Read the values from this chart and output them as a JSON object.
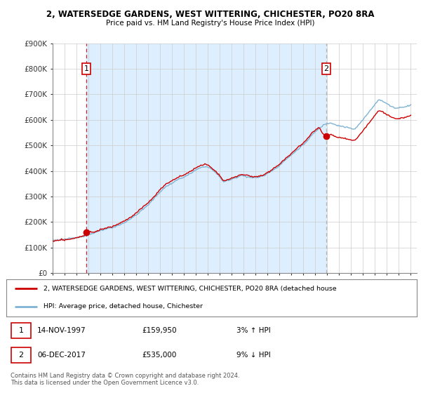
{
  "title_line1": "2, WATERSEDGE GARDENS, WEST WITTERING, CHICHESTER, PO20 8RA",
  "title_line2": "Price paid vs. HM Land Registry's House Price Index (HPI)",
  "sale1_price": 159950,
  "sale1_date_str": "14-NOV-1997",
  "sale1_hpi_pct": "3% ↑ HPI",
  "sale2_price": 535000,
  "sale2_date_str": "06-DEC-2017",
  "sale2_hpi_pct": "9% ↓ HPI",
  "line_color_property": "#cc0000",
  "line_color_hpi": "#7fb3d3",
  "vline1_color": "#cc0000",
  "vline2_color": "#aaaaaa",
  "shading_color": "#ddeeff",
  "marker_color": "#cc0000",
  "label_box_color": "#cc0000",
  "background_color": "#ffffff",
  "grid_color": "#cccccc",
  "legend_label_property": "2, WATERSEDGE GARDENS, WEST WITTERING, CHICHESTER, PO20 8RA (detached house",
  "legend_label_hpi": "HPI: Average price, detached house, Chichester",
  "footer_text": "Contains HM Land Registry data © Crown copyright and database right 2024.\nThis data is licensed under the Open Government Licence v3.0.",
  "ylim": [
    0,
    900000
  ],
  "yticks": [
    0,
    100000,
    200000,
    300000,
    400000,
    500000,
    600000,
    700000,
    800000,
    900000
  ],
  "ytick_labels": [
    "£0",
    "£100K",
    "£200K",
    "£300K",
    "£400K",
    "£500K",
    "£600K",
    "£700K",
    "£800K",
    "£900K"
  ],
  "xmin": 1995,
  "xmax": 2025.5
}
